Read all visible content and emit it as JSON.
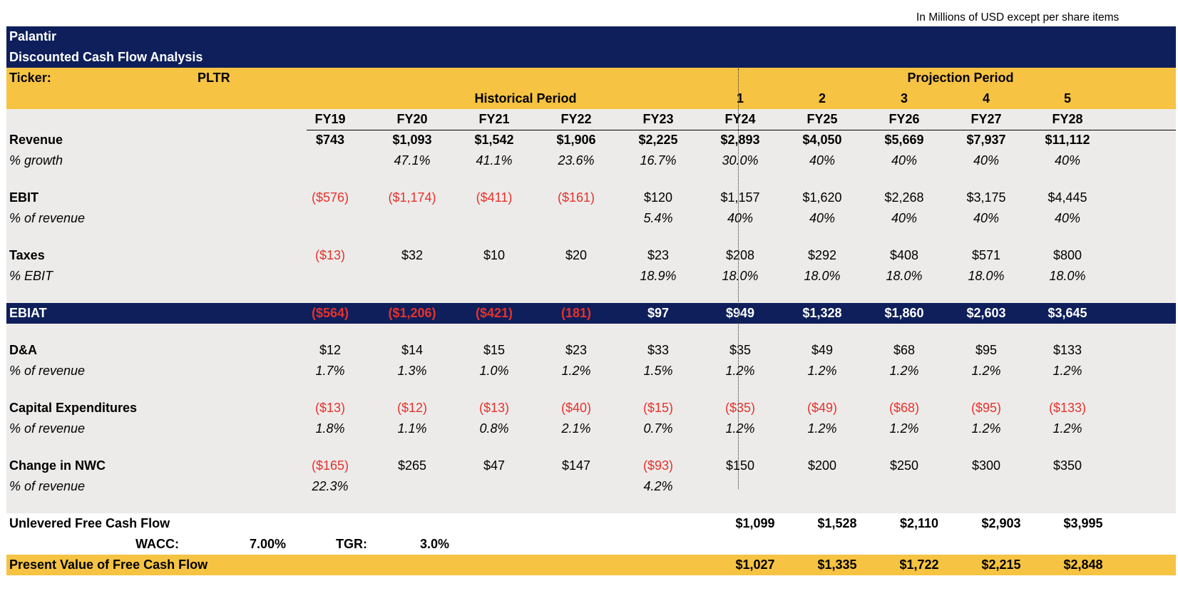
{
  "note": "In Millions of USD except per share items",
  "header": {
    "company": "Palantir",
    "title": "Discounted Cash Flow Analysis"
  },
  "ticker": {
    "label": "Ticker:",
    "value": "PLTR"
  },
  "periods": {
    "projection_label": "Projection Period",
    "historical_label": "Historical Period",
    "projection_numbers": [
      "1",
      "2",
      "3",
      "4",
      "5"
    ],
    "years": [
      "FY19",
      "FY20",
      "FY21",
      "FY22",
      "FY23",
      "FY24",
      "FY25",
      "FY26",
      "FY27",
      "FY28"
    ]
  },
  "rows": [
    {
      "id": "revenue",
      "label": "Revenue",
      "style": "bold",
      "values": [
        "$743",
        "$1,093",
        "$1,542",
        "$1,906",
        "$2,225",
        "$2,893",
        "$4,050",
        "$5,669",
        "$7,937",
        "$11,112"
      ]
    },
    {
      "id": "revenue-growth",
      "label": "% growth",
      "style": "ital",
      "values": [
        "",
        "47.1%",
        "41.1%",
        "23.6%",
        "16.7%",
        "30.0%",
        "40%",
        "40%",
        "40%",
        "40%"
      ]
    },
    {
      "id": "spacer"
    },
    {
      "id": "ebit",
      "label": "EBIT",
      "style": "normal",
      "values": [
        "($576)",
        "($1,174)",
        "($411)",
        "($161)",
        "$120",
        "$1,157",
        "$1,620",
        "$2,268",
        "$3,175",
        "$4,445"
      ]
    },
    {
      "id": "ebit-margin",
      "label": "% of revenue",
      "style": "ital",
      "values": [
        "",
        "",
        "",
        "",
        "5.4%",
        "40%",
        "40%",
        "40%",
        "40%",
        "40%"
      ]
    },
    {
      "id": "spacer"
    },
    {
      "id": "taxes",
      "label": "Taxes",
      "style": "normal",
      "values": [
        "($13)",
        "$32",
        "$10",
        "$20",
        "$23",
        "$208",
        "$292",
        "$408",
        "$571",
        "$800"
      ]
    },
    {
      "id": "tax-rate",
      "label": "% EBIT",
      "style": "ital",
      "values": [
        "",
        "",
        "",
        "",
        "18.9%",
        "18.0%",
        "18.0%",
        "18.0%",
        "18.0%",
        "18.0%"
      ]
    },
    {
      "id": "spacer"
    },
    {
      "id": "ebiat",
      "label": "EBIAT",
      "style": "navy",
      "values": [
        "($564)",
        "($1,206)",
        "($421)",
        "(181)",
        "$97",
        "$949",
        "$1,328",
        "$1,860",
        "$2,603",
        "$3,645"
      ]
    },
    {
      "id": "spacer"
    },
    {
      "id": "da",
      "label": "D&A",
      "style": "normal",
      "values": [
        "$12",
        "$14",
        "$15",
        "$23",
        "$33",
        "$35",
        "$49",
        "$68",
        "$95",
        "$133"
      ]
    },
    {
      "id": "da-pct",
      "label": "% of revenue",
      "style": "ital",
      "values": [
        "1.7%",
        "1.3%",
        "1.0%",
        "1.2%",
        "1.5%",
        "1.2%",
        "1.2%",
        "1.2%",
        "1.2%",
        "1.2%"
      ]
    },
    {
      "id": "spacer"
    },
    {
      "id": "capex",
      "label": "Capital Expenditures",
      "style": "normal",
      "values": [
        "($13)",
        "($12)",
        "($13)",
        "($40)",
        "($15)",
        "($35)",
        "($49)",
        "($68)",
        "($95)",
        "($133)"
      ]
    },
    {
      "id": "capex-pct",
      "label": "% of revenue",
      "style": "ital",
      "values": [
        "1.8%",
        "1.1%",
        "0.8%",
        "2.1%",
        "0.7%",
        "1.2%",
        "1.2%",
        "1.2%",
        "1.2%",
        "1.2%"
      ]
    },
    {
      "id": "spacer"
    },
    {
      "id": "nwc",
      "label": "Change in NWC",
      "style": "normal",
      "values": [
        "($165)",
        "$265",
        "$47",
        "$147",
        "($93)",
        "$150",
        "$200",
        "$250",
        "$300",
        "$350"
      ]
    },
    {
      "id": "nwc-pct",
      "label": "% of revenue",
      "style": "ital",
      "values": [
        "22.3%",
        "",
        "",
        "",
        "4.2%",
        "",
        "",
        "",
        "",
        ""
      ]
    },
    {
      "id": "spacer"
    },
    {
      "id": "ufcf",
      "label": "Unlevered Free Cash Flow",
      "style": "boldright",
      "values": [
        "",
        "",
        "",
        "",
        "",
        "$1,099",
        "$1,528",
        "$2,110",
        "$2,903",
        "$3,995"
      ]
    },
    {
      "id": "assumptions"
    },
    {
      "id": "pv",
      "label": "Present Value of Free Cash Flow",
      "style": "goldright",
      "values": [
        "",
        "",
        "",
        "",
        "",
        "$1,027",
        "$1,335",
        "$1,722",
        "$2,215",
        "$2,848"
      ]
    }
  ],
  "assumptions": {
    "wacc_label": "WACC:",
    "wacc_value": "7.00%",
    "tgr_label": "TGR:",
    "tgr_value": "3.0%"
  },
  "colors": {
    "navy": "#0e1f5b",
    "gold": "#f6c342",
    "grey": "#edebea",
    "negative": "#e6322b"
  }
}
